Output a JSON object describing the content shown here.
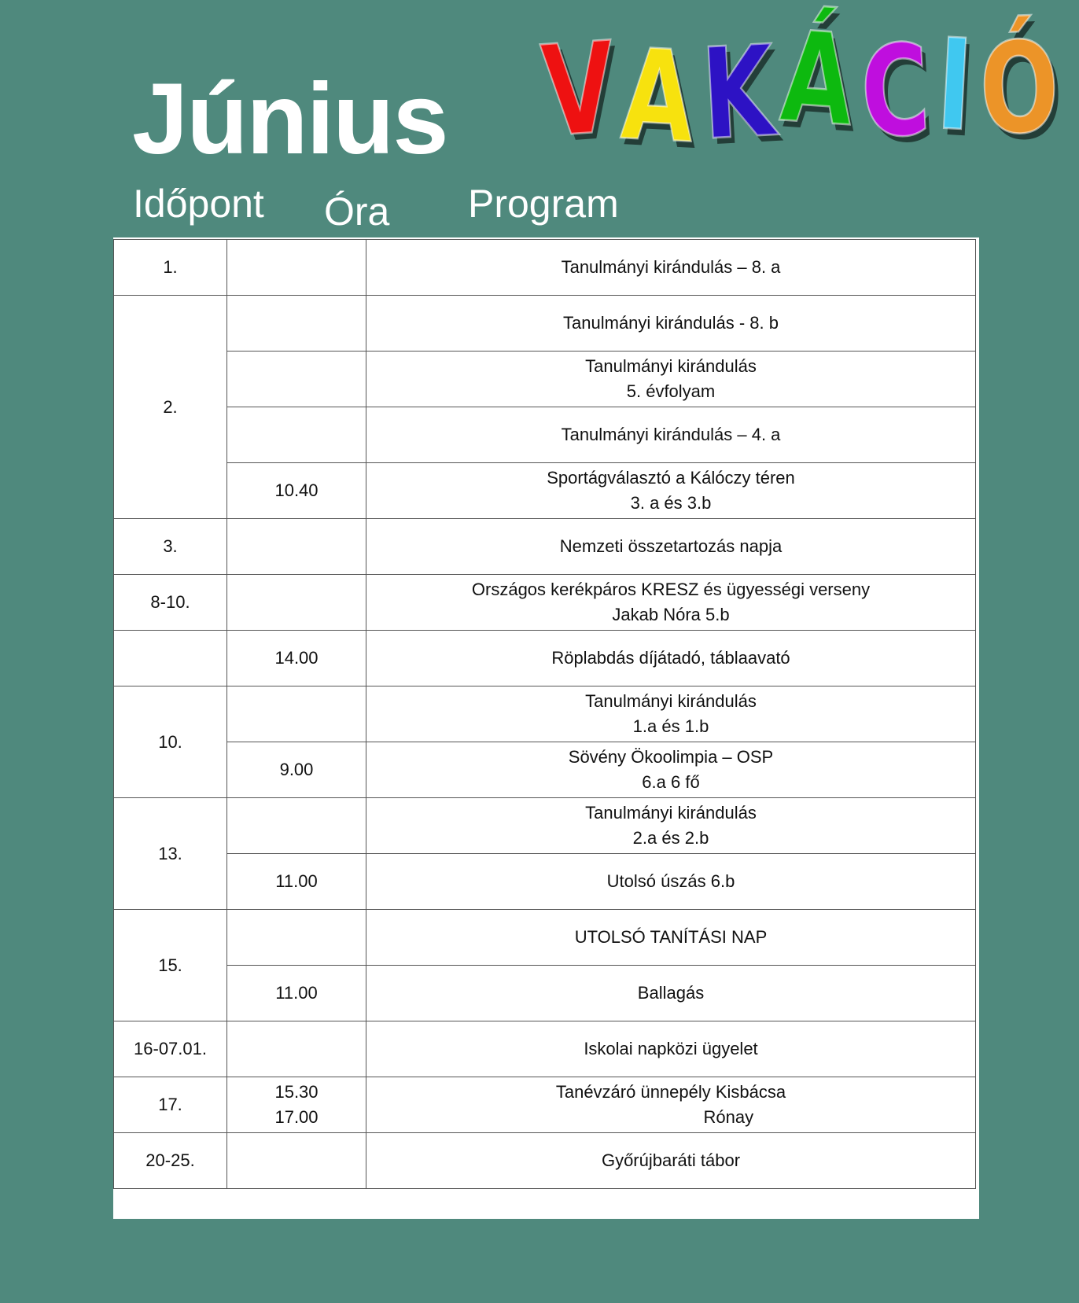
{
  "header": {
    "title": "Június",
    "columns": {
      "date": "Időpont",
      "time": "Óra",
      "program": "Program"
    },
    "logo_text": "VAKÁCIÓ",
    "logo_colors": [
      "#ee1111",
      "#f7e20e",
      "#2d12c4",
      "#0db90f",
      "#bf0ede",
      "#40c8f0",
      "#ec9428"
    ]
  },
  "schedule": [
    {
      "date": "1.",
      "rows": [
        {
          "time": "",
          "program": "Tanulmányi kirándulás – 8. a"
        }
      ]
    },
    {
      "date": "2.",
      "rows": [
        {
          "time": "",
          "program": "Tanulmányi kirándulás - 8. b"
        },
        {
          "time": "",
          "program": "Tanulmányi kirándulás\n5. évfolyam"
        },
        {
          "time": "",
          "program": "Tanulmányi kirándulás – 4. a"
        },
        {
          "time": "10.40",
          "program": "Sportágválasztó a Kálóczy téren\n3. a és 3.b"
        }
      ]
    },
    {
      "date": "3.",
      "rows": [
        {
          "time": "",
          "program": "Nemzeti összetartozás napja"
        }
      ]
    },
    {
      "date": "8-10.",
      "rows": [
        {
          "time": "",
          "program": "Országos kerékpáros KRESZ és ügyességi verseny\nJakab Nóra 5.b"
        }
      ]
    },
    {
      "date": "",
      "rows": [
        {
          "time": "14.00",
          "program": "Röplabdás díjátadó, táblaavató"
        }
      ]
    },
    {
      "date": "10.",
      "rows": [
        {
          "time": "",
          "program": "Tanulmányi kirándulás\n1.a és 1.b"
        },
        {
          "time": "9.00",
          "program": "Sövény Ökoolimpia – OSP\n6.a 6 fő"
        }
      ]
    },
    {
      "date": "13.",
      "rows": [
        {
          "time": "",
          "program": "Tanulmányi kirándulás\n2.a és 2.b"
        },
        {
          "time": "11.00",
          "program": "Utolsó úszás 6.b"
        }
      ]
    },
    {
      "date": "15.",
      "rows": [
        {
          "time": "",
          "program": "UTOLSÓ TANÍTÁSI NAP"
        },
        {
          "time": "11.00",
          "program": "Ballagás"
        }
      ]
    },
    {
      "date": "16-07.01.",
      "rows": [
        {
          "time": "",
          "program": "Iskolai napközi ügyelet"
        }
      ]
    },
    {
      "date": "17.",
      "rows": [
        {
          "time": "15.30\n17.00",
          "program": "Tanévzáró ünnepély Kisbácsa\n                        Rónay"
        }
      ]
    },
    {
      "date": "20-25.",
      "rows": [
        {
          "time": "",
          "program": "Győrújbaráti tábor"
        }
      ]
    }
  ]
}
